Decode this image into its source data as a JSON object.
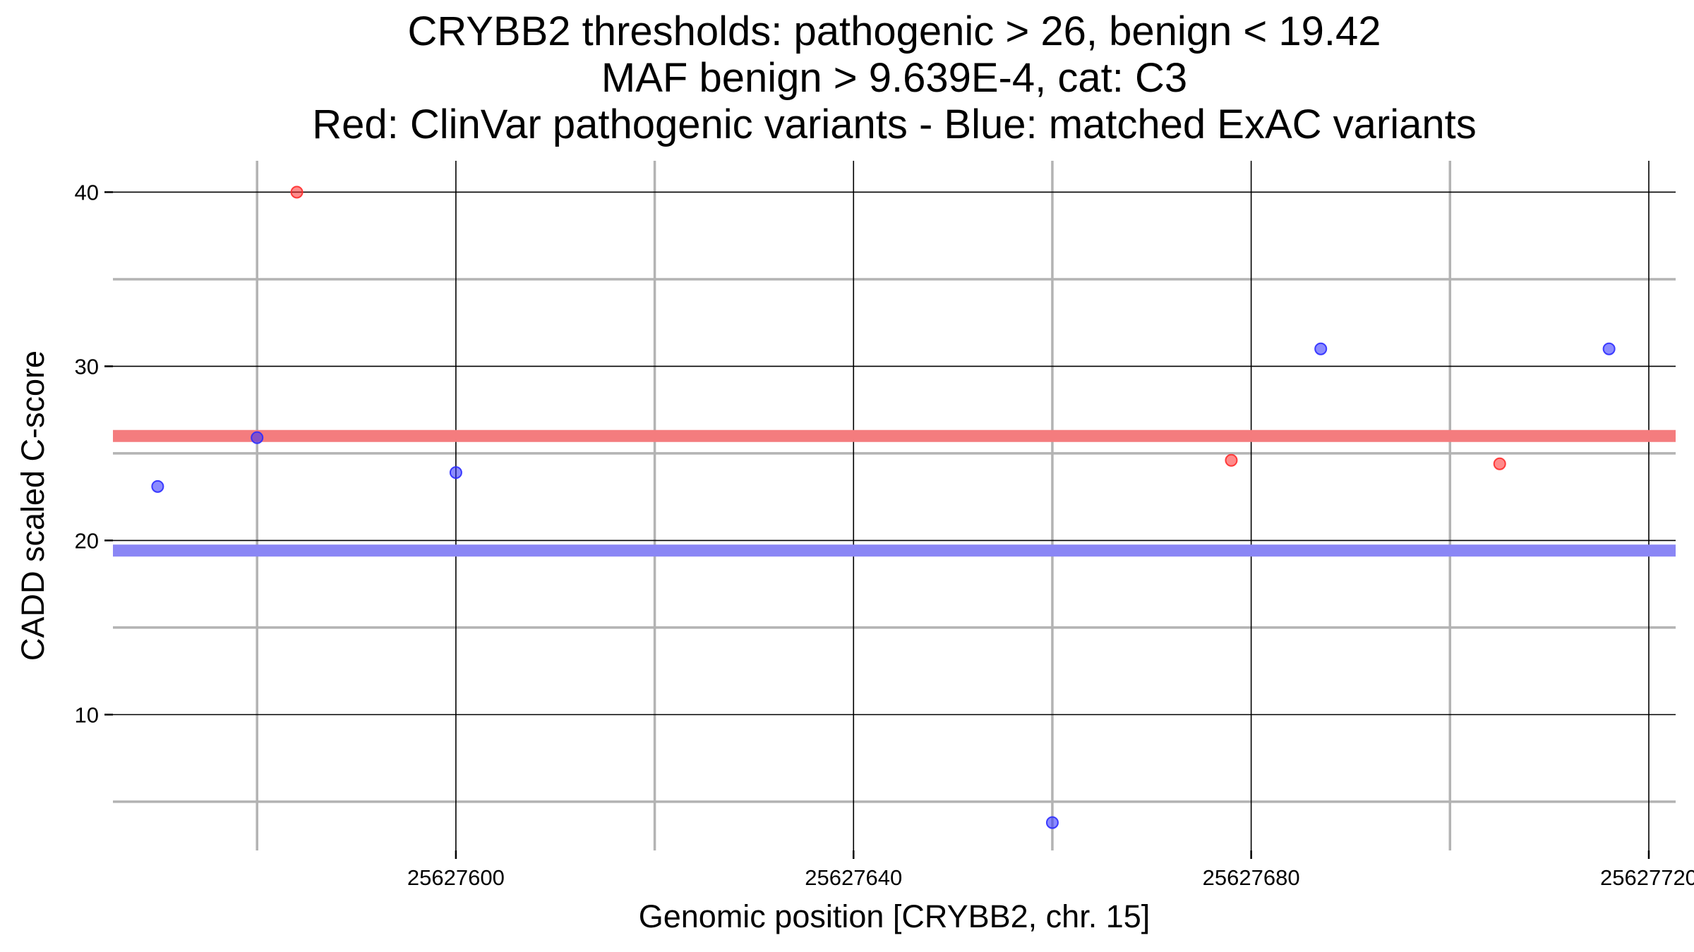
{
  "chart_data": {
    "type": "scatter",
    "title": [
      "CRYBB2 thresholds: pathogenic > 26, benign < 19.42",
      "MAF benign > 9.639E-4, cat: C3",
      "Red: ClinVar pathogenic variants - Blue: matched ExAC variants"
    ],
    "xlabel": "Genomic position [CRYBB2, chr. 15]",
    "ylabel": "CADD scaled C-score",
    "xlim": [
      25627565.5,
      25627722.7
    ],
    "ylim": [
      2.2,
      41.8
    ],
    "x_ticks": [
      25627600,
      25627640,
      25627680,
      25627720
    ],
    "x_tick_labels": [
      "25627600",
      "25627640",
      "25627680",
      "25627720"
    ],
    "x_minor": [
      25627580,
      25627620,
      25627660,
      25627700
    ],
    "y_ticks": [
      10,
      20,
      30,
      40
    ],
    "y_tick_labels": [
      "10",
      "20",
      "30",
      "40"
    ],
    "y_minor": [
      5,
      15,
      25,
      35
    ],
    "thresholds": [
      {
        "name": "pathogenic",
        "value": 26,
        "color": "#f47c7e"
      },
      {
        "name": "benign",
        "value": 19.42,
        "color": "#8a86f5"
      }
    ],
    "series": [
      {
        "name": "ClinVar pathogenic variants",
        "color": "#ff2b2b",
        "points": [
          {
            "x": 25627584,
            "y": 40.0
          },
          {
            "x": 25627678,
            "y": 24.6
          },
          {
            "x": 25627705,
            "y": 24.4
          }
        ]
      },
      {
        "name": "matched ExAC variants",
        "color": "#2b2bff",
        "points": [
          {
            "x": 25627570,
            "y": 23.1
          },
          {
            "x": 25627580,
            "y": 25.9
          },
          {
            "x": 25627600,
            "y": 23.9
          },
          {
            "x": 25627660,
            "y": 3.8
          },
          {
            "x": 25627687,
            "y": 31.0
          },
          {
            "x": 25627716,
            "y": 31.0
          }
        ]
      }
    ]
  }
}
